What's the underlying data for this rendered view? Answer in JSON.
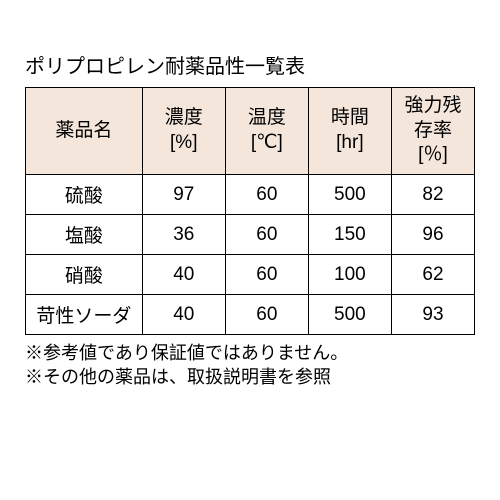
{
  "title": "ポリプロピレン耐薬品性一覧表",
  "headers": {
    "name": "薬品名",
    "concentration": "濃度\n[%]",
    "temperature": "温度\n[℃]",
    "time": "時間\n[hr]",
    "retention": "強力残存率\n[％]"
  },
  "rows": [
    {
      "name": "硫酸",
      "concentration": "97",
      "temperature": "60",
      "time": "500",
      "retention": "82"
    },
    {
      "name": "塩酸",
      "concentration": "36",
      "temperature": "60",
      "time": "150",
      "retention": "96"
    },
    {
      "name": "硝酸",
      "concentration": "40",
      "temperature": "60",
      "time": "100",
      "retention": "62"
    },
    {
      "name": "苛性ソーダ",
      "concentration": "40",
      "temperature": "60",
      "time": "500",
      "retention": "93"
    }
  ],
  "notes": [
    "※参考値であり保証値ではありません。",
    "※その他の薬品は、取扱説明書を参照"
  ],
  "colors": {
    "header_bg": "#f5e6db",
    "border": "#000000",
    "background": "#ffffff",
    "text": "#000000"
  },
  "typography": {
    "title_fontsize": 20,
    "cell_fontsize": 19,
    "notes_fontsize": 18
  }
}
